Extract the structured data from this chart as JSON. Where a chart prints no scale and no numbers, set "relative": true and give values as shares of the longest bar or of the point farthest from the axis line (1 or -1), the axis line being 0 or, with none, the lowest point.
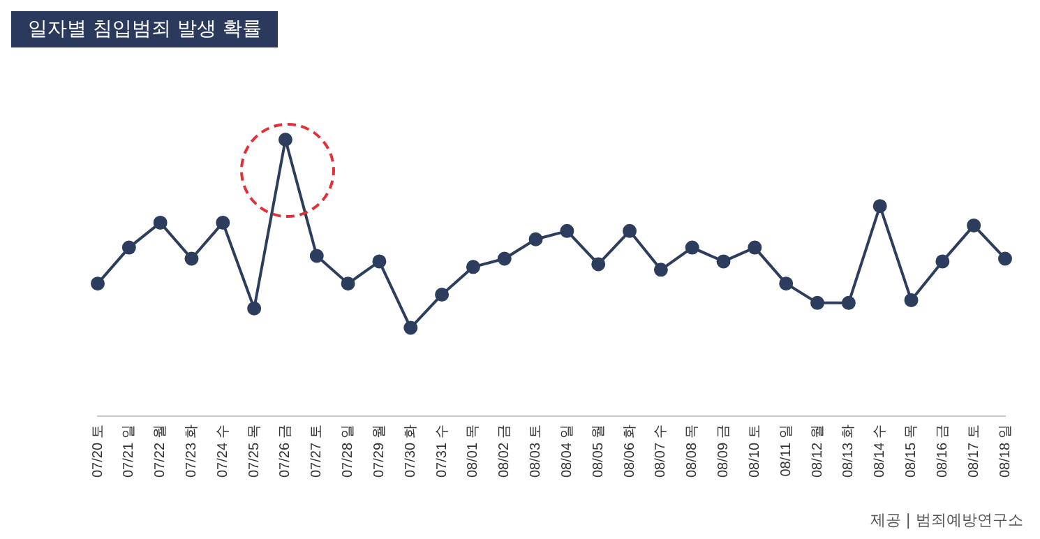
{
  "chart_data": {
    "type": "line",
    "title": "일자별 침입범죄 발생 확률",
    "categories": [
      "07/20 토",
      "07/21 일",
      "07/22 월",
      "07/23 화",
      "07/24 수",
      "07/25 목",
      "07/26 금",
      "07/27 토",
      "07/28 일",
      "07/29 월",
      "07/30 화",
      "07/31 수",
      "08/01 목",
      "08/02 금",
      "08/03 토",
      "08/04 일",
      "08/05 월",
      "08/06 화",
      "08/07 수",
      "08/08 목",
      "08/09 금",
      "08/10 토",
      "08/11 일",
      "08/12 월",
      "08/13 화",
      "08/14 수",
      "08/15 목",
      "08/16 금",
      "08/17 토",
      "08/18 일"
    ],
    "series": [
      {
        "color": "#2d3d5e",
        "values": [
          0.48,
          0.61,
          0.7,
          0.57,
          0.7,
          0.39,
          1,
          0.58,
          0.48,
          0.56,
          0.32,
          0.44,
          0.54,
          0.57,
          0.64,
          0.67,
          0.55,
          0.67,
          0.53,
          0.61,
          0.56,
          0.61,
          0.48,
          0.41,
          0.41,
          0.76,
          0.42,
          0.56,
          0.69,
          0.57
        ]
      }
    ],
    "relative": true,
    "legend": false,
    "marker": "circle",
    "line_style": "solid",
    "annotations": [
      "제공 | 범죄예방연구소"
    ]
  }
}
